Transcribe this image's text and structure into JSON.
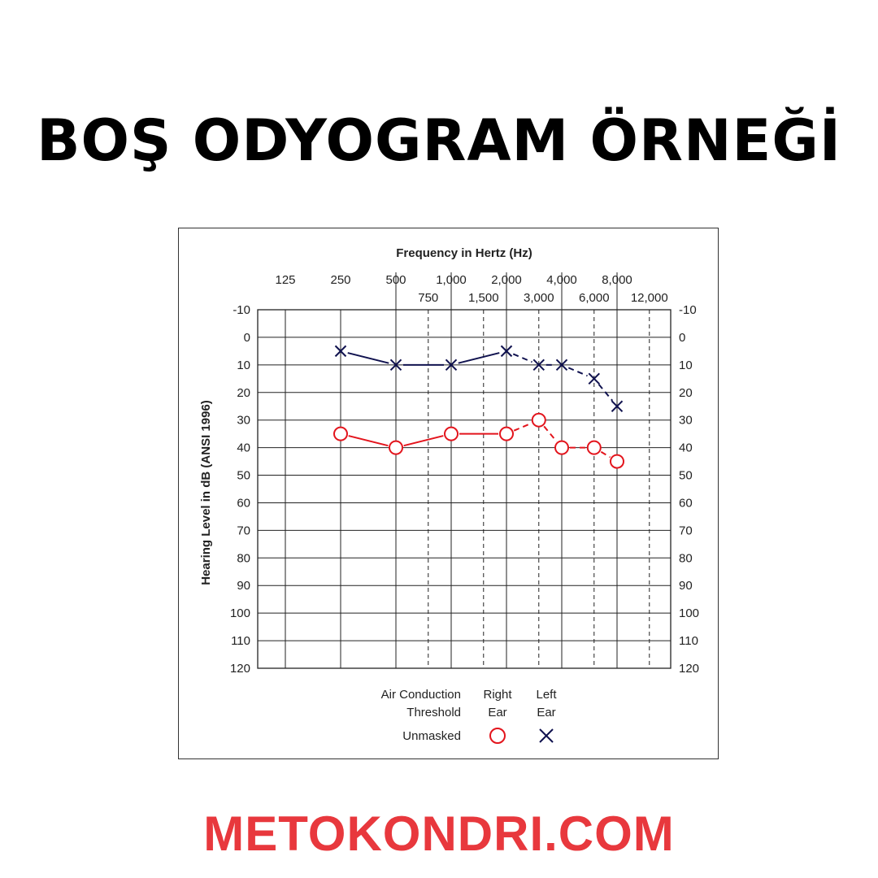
{
  "page": {
    "title": "BOŞ ODYOGRAM ÖRNEĞİ",
    "footer": "METOKONDRI.COM"
  },
  "colors": {
    "right_ear": "#e3141c",
    "left_ear": "#10124f",
    "footer": "#e8383d",
    "grid": "#222222",
    "text": "#222222"
  },
  "chart_data": {
    "type": "line",
    "title": "Frequency in Hertz (Hz)",
    "xlabel": "Frequency in Hertz (Hz)",
    "ylabel": "Hearing Level in dB (ANSI 1996)",
    "octave_frequencies": [
      125,
      250,
      500,
      1000,
      2000,
      4000,
      8000
    ],
    "octave_labels": [
      "125",
      "250",
      "500",
      "1,000",
      "2,000",
      "4,000",
      "8,000"
    ],
    "interoctave_frequencies": [
      750,
      1500,
      3000,
      6000,
      12000
    ],
    "interoctave_labels": [
      "750",
      "1,500",
      "3,000",
      "6,000",
      "12,000"
    ],
    "ylim": [
      -10,
      120
    ],
    "y_ticks": [
      -10,
      0,
      10,
      20,
      30,
      40,
      50,
      60,
      70,
      80,
      90,
      100,
      110,
      120
    ],
    "y_tick_labels": [
      "-10",
      "0",
      "10",
      "20",
      "30",
      "40",
      "50",
      "60",
      "70",
      "80",
      "90",
      "100",
      "110",
      "120"
    ],
    "x_range": [
      125,
      12000
    ],
    "y_inverted": true,
    "series": [
      {
        "name": "Right Ear",
        "marker": "circle",
        "x": [
          250,
          500,
          1000,
          2000,
          3000,
          4000,
          6000,
          8000
        ],
        "values": [
          35,
          40,
          35,
          35,
          30,
          40,
          40,
          45
        ]
      },
      {
        "name": "Left Ear",
        "marker": "cross",
        "x": [
          250,
          500,
          1000,
          2000,
          3000,
          4000,
          6000,
          8000
        ],
        "values": [
          5,
          10,
          10,
          5,
          10,
          10,
          15,
          25
        ]
      }
    ],
    "legend": {
      "heading_line1": "Air Conduction",
      "heading_line2": "Threshold",
      "right_line1": "Right",
      "right_line2": "Ear",
      "left_line1": "Left",
      "left_line2": "Ear",
      "row_label": "Unmasked",
      "placement": "bottom"
    },
    "grid": true
  }
}
